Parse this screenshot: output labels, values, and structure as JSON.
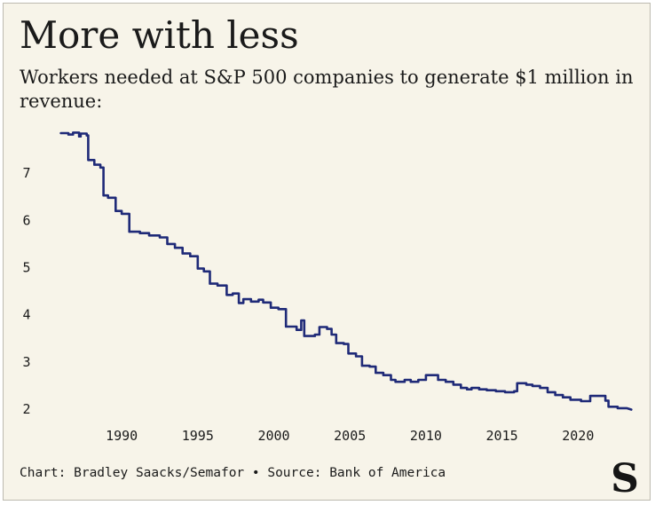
{
  "header": {
    "title": "More with less",
    "subtitle": "Workers needed at S&P 500 companies to generate $1 million in revenue:"
  },
  "footer": {
    "credit": "Chart: Bradley Saacks/Semafor • Source: Bank of America"
  },
  "logo": {
    "letter": "S"
  },
  "chart_data": {
    "type": "line",
    "title": "",
    "xlabel": "",
    "ylabel": "",
    "xlim": [
      1985.5,
      2023.6
    ],
    "ylim": [
      2,
      8
    ],
    "x_ticks": [
      1990,
      1995,
      2000,
      2005,
      2010,
      2015,
      2020
    ],
    "y_ticks": [
      2,
      3,
      4,
      5,
      6,
      7
    ],
    "grid": false,
    "line_color": "#1f2a78",
    "series": [
      {
        "name": "",
        "points": [
          [
            1986.0,
            7.85
          ],
          [
            1986.5,
            7.85
          ],
          [
            1986.5,
            7.82
          ],
          [
            1986.8,
            7.82
          ],
          [
            1986.8,
            7.86
          ],
          [
            1987.2,
            7.86
          ],
          [
            1987.2,
            7.78
          ],
          [
            1987.3,
            7.78
          ],
          [
            1987.3,
            7.84
          ],
          [
            1987.7,
            7.84
          ],
          [
            1987.7,
            7.8
          ],
          [
            1987.8,
            7.8
          ],
          [
            1987.8,
            7.28
          ],
          [
            1988.2,
            7.28
          ],
          [
            1988.2,
            7.18
          ],
          [
            1988.6,
            7.18
          ],
          [
            1988.6,
            7.12
          ],
          [
            1988.8,
            7.12
          ],
          [
            1988.8,
            6.53
          ],
          [
            1989.1,
            6.53
          ],
          [
            1989.1,
            6.48
          ],
          [
            1989.6,
            6.48
          ],
          [
            1989.6,
            6.2
          ],
          [
            1990.0,
            6.2
          ],
          [
            1990.0,
            6.14
          ],
          [
            1990.5,
            6.14
          ],
          [
            1990.5,
            5.76
          ],
          [
            1991.2,
            5.76
          ],
          [
            1991.2,
            5.73
          ],
          [
            1991.8,
            5.73
          ],
          [
            1991.8,
            5.68
          ],
          [
            1992.5,
            5.68
          ],
          [
            1992.5,
            5.64
          ],
          [
            1993.0,
            5.64
          ],
          [
            1993.0,
            5.5
          ],
          [
            1993.5,
            5.5
          ],
          [
            1993.5,
            5.42
          ],
          [
            1994.0,
            5.42
          ],
          [
            1994.0,
            5.3
          ],
          [
            1994.5,
            5.3
          ],
          [
            1994.5,
            5.24
          ],
          [
            1995.0,
            5.24
          ],
          [
            1995.0,
            4.98
          ],
          [
            1995.4,
            4.98
          ],
          [
            1995.4,
            4.92
          ],
          [
            1995.8,
            4.92
          ],
          [
            1995.8,
            4.66
          ],
          [
            1996.3,
            4.66
          ],
          [
            1996.3,
            4.62
          ],
          [
            1996.9,
            4.62
          ],
          [
            1996.9,
            4.42
          ],
          [
            1997.3,
            4.42
          ],
          [
            1997.3,
            4.45
          ],
          [
            1997.7,
            4.45
          ],
          [
            1997.7,
            4.25
          ],
          [
            1998.0,
            4.25
          ],
          [
            1998.0,
            4.33
          ],
          [
            1998.5,
            4.33
          ],
          [
            1998.5,
            4.28
          ],
          [
            1999.0,
            4.28
          ],
          [
            1999.0,
            4.32
          ],
          [
            1999.3,
            4.32
          ],
          [
            1999.3,
            4.26
          ],
          [
            1999.8,
            4.26
          ],
          [
            1999.8,
            4.15
          ],
          [
            2000.3,
            4.15
          ],
          [
            2000.3,
            4.12
          ],
          [
            2000.8,
            4.12
          ],
          [
            2000.8,
            3.75
          ],
          [
            2001.5,
            3.75
          ],
          [
            2001.5,
            3.68
          ],
          [
            2001.8,
            3.68
          ],
          [
            2001.8,
            3.88
          ],
          [
            2002.0,
            3.88
          ],
          [
            2002.0,
            3.55
          ],
          [
            2002.7,
            3.55
          ],
          [
            2002.7,
            3.58
          ],
          [
            2003.0,
            3.58
          ],
          [
            2003.0,
            3.74
          ],
          [
            2003.5,
            3.74
          ],
          [
            2003.5,
            3.7
          ],
          [
            2003.8,
            3.7
          ],
          [
            2003.8,
            3.58
          ],
          [
            2004.1,
            3.58
          ],
          [
            2004.1,
            3.4
          ],
          [
            2004.6,
            3.4
          ],
          [
            2004.6,
            3.38
          ],
          [
            2004.9,
            3.38
          ],
          [
            2004.9,
            3.18
          ],
          [
            2005.4,
            3.18
          ],
          [
            2005.4,
            3.12
          ],
          [
            2005.8,
            3.12
          ],
          [
            2005.8,
            2.92
          ],
          [
            2006.3,
            2.92
          ],
          [
            2006.3,
            2.9
          ],
          [
            2006.7,
            2.9
          ],
          [
            2006.7,
            2.77
          ],
          [
            2007.2,
            2.77
          ],
          [
            2007.2,
            2.72
          ],
          [
            2007.7,
            2.72
          ],
          [
            2007.7,
            2.62
          ],
          [
            2008.0,
            2.62
          ],
          [
            2008.0,
            2.58
          ],
          [
            2008.6,
            2.58
          ],
          [
            2008.6,
            2.62
          ],
          [
            2009.0,
            2.62
          ],
          [
            2009.0,
            2.58
          ],
          [
            2009.5,
            2.58
          ],
          [
            2009.5,
            2.62
          ],
          [
            2010.0,
            2.62
          ],
          [
            2010.0,
            2.72
          ],
          [
            2010.8,
            2.72
          ],
          [
            2010.8,
            2.62
          ],
          [
            2011.3,
            2.62
          ],
          [
            2011.3,
            2.58
          ],
          [
            2011.8,
            2.58
          ],
          [
            2011.8,
            2.52
          ],
          [
            2012.3,
            2.52
          ],
          [
            2012.3,
            2.45
          ],
          [
            2012.7,
            2.45
          ],
          [
            2012.7,
            2.42
          ],
          [
            2013.0,
            2.42
          ],
          [
            2013.0,
            2.45
          ],
          [
            2013.5,
            2.45
          ],
          [
            2013.5,
            2.42
          ],
          [
            2014.0,
            2.42
          ],
          [
            2014.0,
            2.4
          ],
          [
            2014.6,
            2.4
          ],
          [
            2014.6,
            2.38
          ],
          [
            2015.2,
            2.38
          ],
          [
            2015.2,
            2.36
          ],
          [
            2015.8,
            2.36
          ],
          [
            2015.8,
            2.38
          ],
          [
            2016.0,
            2.38
          ],
          [
            2016.0,
            2.55
          ],
          [
            2016.6,
            2.55
          ],
          [
            2016.6,
            2.52
          ],
          [
            2017.0,
            2.52
          ],
          [
            2017.0,
            2.49
          ],
          [
            2017.5,
            2.49
          ],
          [
            2017.5,
            2.45
          ],
          [
            2018.0,
            2.45
          ],
          [
            2018.0,
            2.36
          ],
          [
            2018.5,
            2.36
          ],
          [
            2018.5,
            2.3
          ],
          [
            2019.0,
            2.3
          ],
          [
            2019.0,
            2.25
          ],
          [
            2019.5,
            2.25
          ],
          [
            2019.5,
            2.2
          ],
          [
            2020.2,
            2.2
          ],
          [
            2020.2,
            2.17
          ],
          [
            2020.8,
            2.17
          ],
          [
            2020.8,
            2.28
          ],
          [
            2021.8,
            2.28
          ],
          [
            2021.8,
            2.18
          ],
          [
            2022.0,
            2.18
          ],
          [
            2022.0,
            2.05
          ],
          [
            2022.6,
            2.05
          ],
          [
            2022.6,
            2.02
          ],
          [
            2023.2,
            2.02
          ],
          [
            2023.5,
            1.99
          ]
        ]
      }
    ]
  }
}
